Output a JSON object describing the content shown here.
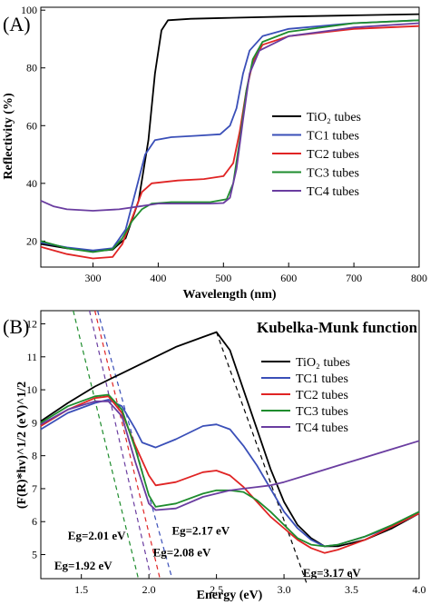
{
  "chart_data": [
    {
      "panel_label": "(A)",
      "type": "line",
      "xlabel": "Wavelength (nm)",
      "ylabel": "Reflectivity (%)",
      "xlim": [
        220,
        800
      ],
      "ylim": [
        11,
        101
      ],
      "xticks": [
        300,
        400,
        500,
        600,
        700,
        800
      ],
      "yticks": [
        20,
        40,
        60,
        80,
        100
      ],
      "legend_position": "center-right",
      "series": [
        {
          "name": "TiO₂ tubes",
          "color": "#000000",
          "points": [
            [
              220,
              19
            ],
            [
              260,
              17.5
            ],
            [
              300,
              16.5
            ],
            [
              330,
              17
            ],
            [
              350,
              21
            ],
            [
              370,
              34
            ],
            [
              385,
              55
            ],
            [
              395,
              78
            ],
            [
              405,
              93
            ],
            [
              415,
              96.5
            ],
            [
              450,
              97
            ],
            [
              500,
              97.3
            ],
            [
              600,
              97.8
            ],
            [
              700,
              98.2
            ],
            [
              800,
              98.6
            ]
          ]
        },
        {
          "name": "TC1 tubes",
          "color": "#3a4fb8",
          "points": [
            [
              220,
              19.5
            ],
            [
              260,
              17.8
            ],
            [
              300,
              16.8
            ],
            [
              330,
              17.5
            ],
            [
              350,
              24
            ],
            [
              365,
              37
            ],
            [
              380,
              50
            ],
            [
              395,
              55
            ],
            [
              420,
              56
            ],
            [
              460,
              56.5
            ],
            [
              495,
              57
            ],
            [
              510,
              60
            ],
            [
              520,
              66
            ],
            [
              530,
              78
            ],
            [
              540,
              86
            ],
            [
              560,
              91
            ],
            [
              600,
              93.5
            ],
            [
              700,
              95.5
            ],
            [
              800,
              96.5
            ]
          ]
        },
        {
          "name": "TC2 tubes",
          "color": "#e02424",
          "points": [
            [
              220,
              18
            ],
            [
              260,
              15.5
            ],
            [
              300,
              14
            ],
            [
              330,
              14.5
            ],
            [
              345,
              19
            ],
            [
              360,
              28
            ],
            [
              375,
              37
            ],
            [
              390,
              40
            ],
            [
              430,
              41
            ],
            [
              470,
              41.5
            ],
            [
              500,
              42.5
            ],
            [
              515,
              47
            ],
            [
              525,
              58
            ],
            [
              535,
              72
            ],
            [
              545,
              82
            ],
            [
              560,
              88
            ],
            [
              600,
              91
            ],
            [
              700,
              93.5
            ],
            [
              800,
              94.5
            ]
          ]
        },
        {
          "name": "TC3 tubes",
          "color": "#1e8c2d",
          "points": [
            [
              220,
              20
            ],
            [
              260,
              17.5
            ],
            [
              300,
              16.2
            ],
            [
              330,
              17.2
            ],
            [
              345,
              21
            ],
            [
              360,
              27
            ],
            [
              375,
              31
            ],
            [
              390,
              33
            ],
            [
              420,
              33.5
            ],
            [
              480,
              33.5
            ],
            [
              505,
              34.5
            ],
            [
              515,
              40
            ],
            [
              525,
              55
            ],
            [
              535,
              72
            ],
            [
              545,
              83
            ],
            [
              560,
              89
            ],
            [
              600,
              92.5
            ],
            [
              700,
              95.5
            ],
            [
              800,
              96.5
            ]
          ]
        },
        {
          "name": "TC4 tubes",
          "color": "#6a3da0",
          "points": [
            [
              220,
              34
            ],
            [
              240,
              32
            ],
            [
              260,
              31
            ],
            [
              300,
              30.5
            ],
            [
              340,
              31
            ],
            [
              370,
              32
            ],
            [
              400,
              33
            ],
            [
              440,
              33
            ],
            [
              480,
              33
            ],
            [
              500,
              33.2
            ],
            [
              510,
              35
            ],
            [
              520,
              45
            ],
            [
              530,
              62
            ],
            [
              540,
              78
            ],
            [
              555,
              86
            ],
            [
              600,
              91
            ],
            [
              700,
              94
            ],
            [
              800,
              95.5
            ]
          ]
        }
      ]
    },
    {
      "panel_label": "(B)",
      "type": "line",
      "title": "Kubelka-Munk function",
      "xlabel": "Energy (eV)",
      "ylabel": "(F(R)*hv)^1/2 (eV)^1/2",
      "xlim": [
        1.2,
        4.0
      ],
      "ylim": [
        4.27,
        12.4
      ],
      "xticks": [
        1.5,
        2.0,
        2.5,
        3.0,
        3.5,
        4.0
      ],
      "yticks": [
        5,
        6,
        7,
        8,
        9,
        10,
        11,
        12
      ],
      "legend_position": "top-right",
      "series": [
        {
          "name": "TiO₂ tubes",
          "color": "#000000",
          "points": [
            [
              1.2,
              9.05
            ],
            [
              1.4,
              9.6
            ],
            [
              1.6,
              10.1
            ],
            [
              1.8,
              10.5
            ],
            [
              2.0,
              10.9
            ],
            [
              2.2,
              11.3
            ],
            [
              2.4,
              11.6
            ],
            [
              2.5,
              11.75
            ],
            [
              2.6,
              11.2
            ],
            [
              2.7,
              10.0
            ],
            [
              2.8,
              8.8
            ],
            [
              2.9,
              7.6
            ],
            [
              3.0,
              6.6
            ],
            [
              3.1,
              5.9
            ],
            [
              3.2,
              5.5
            ],
            [
              3.3,
              5.25
            ],
            [
              3.4,
              5.25
            ],
            [
              3.6,
              5.45
            ],
            [
              3.8,
              5.8
            ],
            [
              4.0,
              6.25
            ]
          ]
        },
        {
          "name": "TC1 tubes",
          "color": "#3a4fb8",
          "points": [
            [
              1.2,
              8.8
            ],
            [
              1.4,
              9.3
            ],
            [
              1.6,
              9.6
            ],
            [
              1.7,
              9.7
            ],
            [
              1.8,
              9.5
            ],
            [
              1.9,
              8.8
            ],
            [
              1.95,
              8.4
            ],
            [
              2.05,
              8.25
            ],
            [
              2.2,
              8.5
            ],
            [
              2.4,
              8.9
            ],
            [
              2.5,
              8.95
            ],
            [
              2.6,
              8.8
            ],
            [
              2.7,
              8.3
            ],
            [
              2.8,
              7.7
            ],
            [
              2.9,
              7.0
            ],
            [
              3.0,
              6.3
            ],
            [
              3.1,
              5.8
            ],
            [
              3.2,
              5.45
            ],
            [
              3.3,
              5.25
            ],
            [
              3.4,
              5.3
            ],
            [
              3.6,
              5.55
            ],
            [
              3.8,
              5.85
            ],
            [
              4.0,
              6.25
            ]
          ]
        },
        {
          "name": "TC2 tubes",
          "color": "#e02424",
          "points": [
            [
              1.2,
              8.9
            ],
            [
              1.4,
              9.4
            ],
            [
              1.6,
              9.75
            ],
            [
              1.7,
              9.8
            ],
            [
              1.8,
              9.3
            ],
            [
              1.9,
              8.3
            ],
            [
              2.0,
              7.4
            ],
            [
              2.05,
              7.1
            ],
            [
              2.2,
              7.2
            ],
            [
              2.4,
              7.5
            ],
            [
              2.5,
              7.55
            ],
            [
              2.6,
              7.4
            ],
            [
              2.7,
              7.05
            ],
            [
              2.8,
              6.6
            ],
            [
              2.9,
              6.15
            ],
            [
              3.0,
              5.8
            ],
            [
              3.1,
              5.45
            ],
            [
              3.2,
              5.2
            ],
            [
              3.3,
              5.05
            ],
            [
              3.4,
              5.15
            ],
            [
              3.6,
              5.45
            ],
            [
              3.8,
              5.85
            ],
            [
              4.0,
              6.25
            ]
          ]
        },
        {
          "name": "TC3 tubes",
          "color": "#1e8c2d",
          "points": [
            [
              1.2,
              9.0
            ],
            [
              1.4,
              9.5
            ],
            [
              1.6,
              9.8
            ],
            [
              1.7,
              9.85
            ],
            [
              1.8,
              9.4
            ],
            [
              1.9,
              8.2
            ],
            [
              2.0,
              6.8
            ],
            [
              2.05,
              6.45
            ],
            [
              2.2,
              6.55
            ],
            [
              2.4,
              6.85
            ],
            [
              2.5,
              6.95
            ],
            [
              2.6,
              6.95
            ],
            [
              2.7,
              6.9
            ],
            [
              2.8,
              6.65
            ],
            [
              2.9,
              6.3
            ],
            [
              3.0,
              5.9
            ],
            [
              3.1,
              5.5
            ],
            [
              3.2,
              5.3
            ],
            [
              3.3,
              5.25
            ],
            [
              3.4,
              5.3
            ],
            [
              3.6,
              5.55
            ],
            [
              3.8,
              5.9
            ],
            [
              4.0,
              6.3
            ]
          ]
        },
        {
          "name": "TC4 tubes",
          "color": "#6a3da0",
          "points": [
            [
              1.2,
              8.95
            ],
            [
              1.4,
              9.4
            ],
            [
              1.6,
              9.65
            ],
            [
              1.7,
              9.65
            ],
            [
              1.8,
              9.2
            ],
            [
              1.9,
              7.8
            ],
            [
              2.0,
              6.55
            ],
            [
              2.05,
              6.35
            ],
            [
              2.2,
              6.4
            ],
            [
              2.4,
              6.75
            ],
            [
              2.5,
              6.85
            ],
            [
              2.6,
              6.95
            ],
            [
              2.7,
              7.0
            ],
            [
              2.8,
              7.05
            ],
            [
              2.9,
              7.1
            ],
            [
              3.0,
              7.2
            ],
            [
              3.2,
              7.45
            ],
            [
              3.4,
              7.7
            ],
            [
              3.6,
              7.95
            ],
            [
              3.8,
              8.2
            ],
            [
              4.0,
              8.45
            ]
          ]
        }
      ],
      "tangents": [
        {
          "color": "#000000",
          "from": [
            2.5,
            11.75
          ],
          "to": [
            3.17,
            4.1
          ]
        },
        {
          "color": "#3a4fb8",
          "from": [
            1.62,
            12.4
          ],
          "to": [
            2.17,
            4.3
          ]
        },
        {
          "color": "#e02424",
          "from": [
            1.6,
            12.4
          ],
          "to": [
            2.08,
            4.3
          ]
        },
        {
          "color": "#6a3da0",
          "from": [
            1.56,
            12.4
          ],
          "to": [
            2.01,
            4.4
          ]
        },
        {
          "color": "#1e8c2d",
          "from": [
            1.44,
            12.4
          ],
          "to": [
            1.92,
            4.3
          ]
        }
      ],
      "annotations": [
        {
          "text": "Eg=2.17 eV",
          "color": "#3a4fb8",
          "at": [
            2.17,
            5.6
          ]
        },
        {
          "text": "Eg=2.01 eV",
          "color": "#6a3da0",
          "at": [
            1.4,
            5.45
          ]
        },
        {
          "text": "Eg=2.08 eV",
          "color": "#e02424",
          "at": [
            2.03,
            4.95
          ]
        },
        {
          "text": "Eg=1.92 eV",
          "color": "#1e8c2d",
          "at": [
            1.3,
            4.55
          ]
        },
        {
          "text": "Eg=3.17 eV",
          "color": "#000000",
          "at": [
            3.14,
            4.32
          ]
        }
      ]
    }
  ]
}
